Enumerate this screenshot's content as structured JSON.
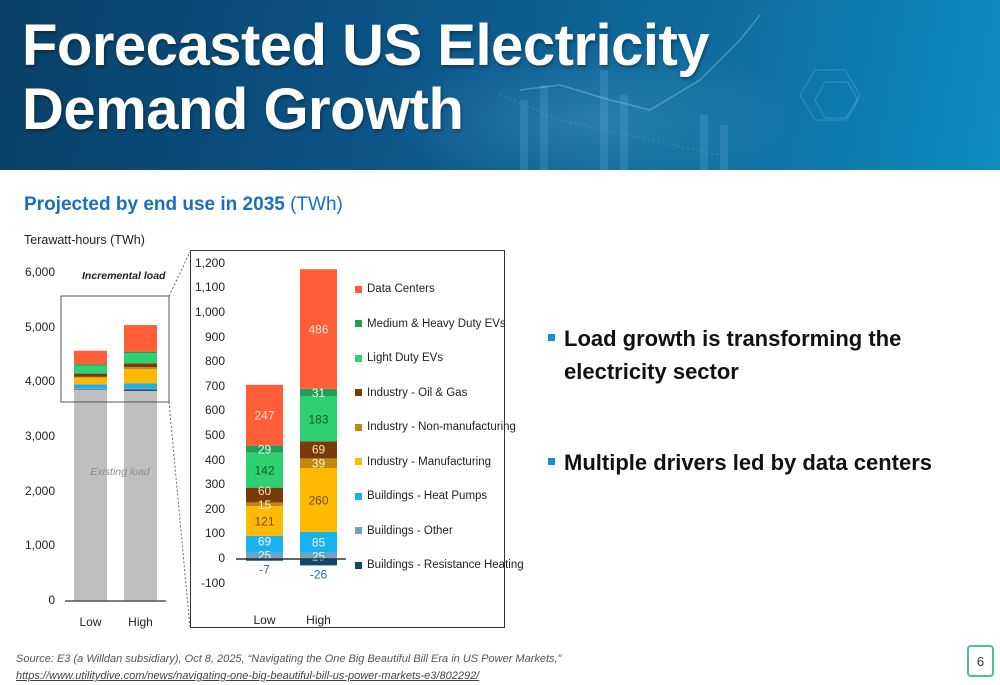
{
  "header": {
    "title_line1": "Forecasted US Electricity",
    "title_line2": "Demand Growth"
  },
  "subtitle": {
    "bold": "Projected by end use in 2035",
    "unit": "(TWh)"
  },
  "bullets": [
    {
      "line1": "Load growth is transforming the",
      "line2": "electricity sector"
    },
    {
      "line1": "Multiple drivers led by data centers"
    }
  ],
  "source": {
    "text": "Source: E3 (a Willdan subsidiary), Oct 8, 2025, “Navigating the One Big Beautiful Bill Era in US Power Markets,”",
    "link": "https://www.utilitydive.com/news/navigating-one-big-beautiful-bill-us-power-markets-e3/802292/"
  },
  "page_number": "6",
  "chart_data": [
    {
      "type": "bar",
      "stacked": true,
      "ylabel": "Terawatt-hours (TWh)",
      "categories": [
        "Low",
        "High"
      ],
      "yticks": [
        "0",
        "1,000",
        "2,000",
        "3,000",
        "4,000",
        "5,000",
        "6,000"
      ],
      "ylim": [
        0,
        6000
      ],
      "annotations": {
        "incremental": "Incremental load",
        "existing": "Existing load"
      },
      "existing_load": [
        3870,
        3870
      ],
      "colors": {
        "existing": "#bfbfbf"
      }
    },
    {
      "type": "bar",
      "stacked": true,
      "categories": [
        "Low",
        "High"
      ],
      "yticks": [
        "-100",
        "0",
        "100",
        "200",
        "300",
        "400",
        "500",
        "600",
        "700",
        "800",
        "900",
        "1,000",
        "1,100",
        "1,200"
      ],
      "ylim": [
        -100,
        1200
      ],
      "legend_position": "right",
      "series": [
        {
          "name": "Buildings - Resistance Heating",
          "values": [
            -7,
            -26
          ],
          "color": "#0b4a6b",
          "label_color": "#1d6fa0"
        },
        {
          "name": "Buildings - Other",
          "values": [
            25,
            25
          ],
          "color": "#6fa3c0",
          "label_color": "#e8f2f8"
        },
        {
          "name": "Buildings - Heat Pumps",
          "values": [
            69,
            85
          ],
          "color": "#19b2f0",
          "label_color": "#eaf8ff"
        },
        {
          "name": "Industry - Manufacturing",
          "values": [
            121,
            260
          ],
          "color": "#ffb900",
          "label_color": "#7a4a00"
        },
        {
          "name": "Industry - Non-manufacturing",
          "values": [
            15,
            39
          ],
          "color": "#bf8a10",
          "label_color": "#fff3c8"
        },
        {
          "name": "Industry - Oil & Gas",
          "values": [
            60,
            69
          ],
          "color": "#7b3a0c",
          "label_color": "#f6dcc0"
        },
        {
          "name": "Light Duty EVs",
          "values": [
            142,
            183
          ],
          "color": "#2fd072",
          "label_color": "#0d5a2c"
        },
        {
          "name": "Medium & Heavy Duty EVs",
          "values": [
            29,
            31
          ],
          "color": "#1ea157",
          "label_color": "#e6fff0"
        },
        {
          "name": "Data Centers",
          "values": [
            247,
            486
          ],
          "color": "#ff5e38",
          "label_color": "#ffe6de"
        }
      ]
    }
  ]
}
